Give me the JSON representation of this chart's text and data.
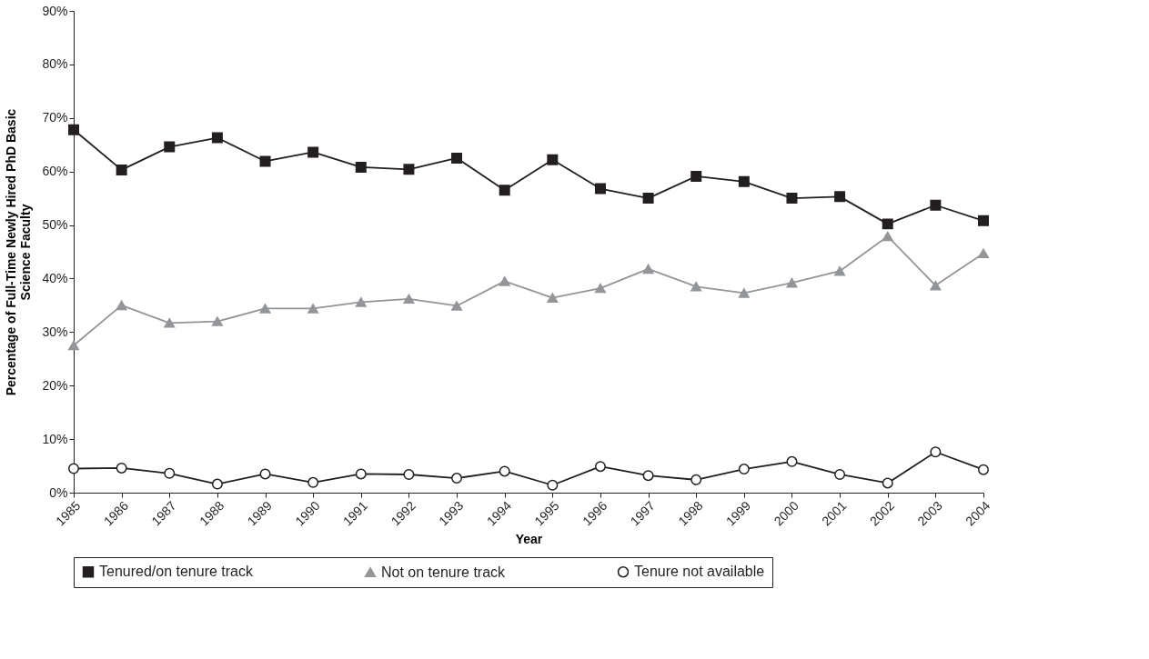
{
  "chart_data": {
    "type": "line",
    "xlabel": "Year",
    "ylabel": "Percentage of Full-Time Newly Hired PhD Basic Science Faculty",
    "categories": [
      "1985",
      "1986",
      "1987",
      "1988",
      "1989",
      "1990",
      "1991",
      "1992",
      "1993",
      "1994",
      "1995",
      "1996",
      "1997",
      "1998",
      "1999",
      "2000",
      "2001",
      "2002",
      "2003",
      "2004"
    ],
    "series": [
      {
        "name": "Tenured/on tenure track",
        "color": "#231f20",
        "marker": "square",
        "values": [
          67.8,
          60.3,
          64.6,
          66.3,
          61.9,
          63.6,
          60.8,
          60.4,
          62.5,
          56.5,
          62.2,
          56.8,
          55.0,
          59.1,
          58.1,
          55.0,
          55.3,
          50.2,
          53.7,
          50.8
        ]
      },
      {
        "name": "Not on tenure track",
        "color": "#939598",
        "marker": "triangle",
        "values": [
          27.5,
          35.0,
          31.7,
          32.0,
          34.4,
          34.4,
          35.6,
          36.2,
          34.9,
          39.5,
          36.4,
          38.2,
          41.8,
          38.5,
          37.3,
          39.2,
          41.4,
          47.9,
          38.7,
          44.7
        ]
      },
      {
        "name": "Tenure not available",
        "color": "#231f20",
        "marker": "circle",
        "values": [
          4.5,
          4.6,
          3.6,
          1.6,
          3.5,
          1.9,
          3.5,
          3.4,
          2.7,
          4.0,
          1.4,
          4.9,
          3.2,
          2.4,
          4.4,
          5.8,
          3.4,
          1.8,
          7.6,
          4.3
        ]
      }
    ],
    "ylim": [
      0,
      90
    ],
    "yticks": [
      {
        "value": 0,
        "label": "0%"
      },
      {
        "value": 10,
        "label": "10%"
      },
      {
        "value": 20,
        "label": "20%"
      },
      {
        "value": 30,
        "label": "30%"
      },
      {
        "value": 40,
        "label": "40%"
      },
      {
        "value": 50,
        "label": "50%"
      },
      {
        "value": 60,
        "label": "60%"
      },
      {
        "value": 70,
        "label": "70%"
      },
      {
        "value": 80,
        "label": "80%"
      },
      {
        "value": 90,
        "label": "90%"
      }
    ],
    "grid": false,
    "legend": "bottom",
    "line_style": "solid"
  }
}
